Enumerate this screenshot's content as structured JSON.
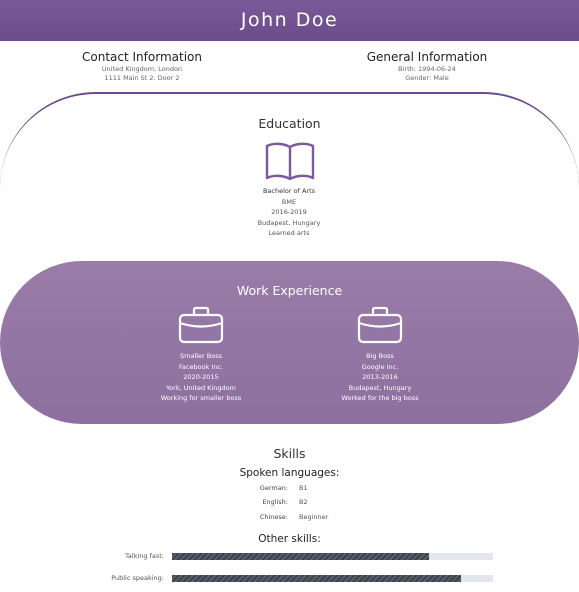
{
  "header": {
    "name": "John Doe"
  },
  "contact": {
    "title": "Contact Information",
    "lines": [
      "United Kingdom, London",
      "1111 Main St 2. Door 2"
    ]
  },
  "general": {
    "title": "General Information",
    "lines": [
      "Birth: 1994-06-24",
      "Gender: Male"
    ]
  },
  "education": {
    "title": "Education",
    "icon": "book-icon",
    "entry": {
      "degree": "Bachelor of Arts",
      "school": "BME",
      "years": "2016-2019",
      "location": "Budapest, Hungary",
      "description": "Learned arts"
    }
  },
  "work": {
    "title": "Work Experience",
    "icon": "briefcase-icon",
    "jobs": [
      {
        "position": "Smaller Boss",
        "company": "Facebook Inc.",
        "years": "2020-2015",
        "location": "York, United Kingdom",
        "description": "Working for smaller boss"
      },
      {
        "position": "Big Boss",
        "company": "Google Inc.",
        "years": "2013-2016",
        "location": "Budapest, Hungary",
        "description": "Worked for the big boss"
      }
    ]
  },
  "skills": {
    "title": "Skills",
    "languages_title": "Spoken languages:",
    "languages": [
      {
        "label": "German:",
        "level": "B1"
      },
      {
        "label": "English:",
        "level": "B2"
      },
      {
        "label": "Chinese:",
        "level": "Beginner"
      }
    ],
    "other_title": "Other skills:",
    "other": [
      {
        "label": "Talking fast:",
        "percent": 80
      },
      {
        "label": "Public speaking:",
        "percent": 90
      }
    ]
  },
  "colors": {
    "accent": "#6b4b8a",
    "work_background": "#98789f",
    "bar_track": "#e3e7ec",
    "bar_fill": "#3a434d"
  }
}
